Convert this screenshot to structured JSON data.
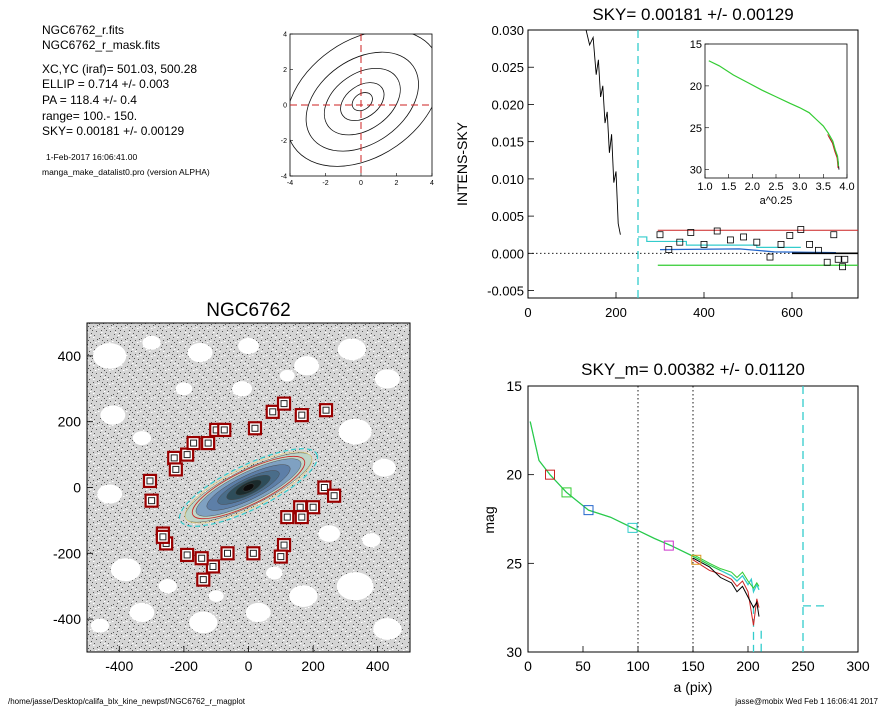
{
  "info": {
    "file1": "NGC6762_r.fits",
    "file2": "NGC6762_r_mask.fits",
    "xcyc": "XC,YC (iraf)=   501.03, 500.28",
    "ellip": "ELLIP = 0.714 +/- 0.003",
    "pa": "PA    = 118.4 +/-   0.4",
    "range": "range=  100.-  150.",
    "sky": "SKY= 0.00181 +/- 0.00129",
    "date": "1-Feb-2017 16:06:41.00",
    "program": "manga_make_datalist0.pro (version ALPHA)"
  },
  "footer": {
    "path": "/home/jasse/Desktop/califa_blx_kine_newpsf/NGC6762_r_magplot",
    "stamp": "jasse@mobix  Wed Feb  1 16:06:41 2017"
  },
  "colors": {
    "cyan": "#33cccc",
    "red": "#cc2222",
    "green": "#33cc33",
    "blue": "#2266cc",
    "dark_red": "#990000"
  },
  "chart_data": [
    {
      "id": "contour",
      "type": "line",
      "xlim": [
        -4,
        4
      ],
      "ylim": [
        -4,
        4
      ],
      "xticks": [
        "-4",
        "-2",
        "0",
        "2",
        "4"
      ],
      "yticks": [
        "-4",
        "-2",
        "0",
        "2",
        "4"
      ],
      "crosshair": [
        0,
        0
      ]
    },
    {
      "id": "sky",
      "type": "line",
      "title": "SKY= 0.00181 +/- 0.00129",
      "ylabel": "INTENS-SKY",
      "xlim": [
        0,
        750
      ],
      "ylim": [
        -0.006,
        0.03
      ],
      "xticks": [
        "0",
        "200",
        "400",
        "600"
      ],
      "yticks": [
        "0.030",
        "0.025",
        "0.020",
        "0.015",
        "0.010",
        "0.005",
        "0.000",
        "-0.005"
      ],
      "vline_x": 250,
      "profile": [
        [
          130,
          0.0305
        ],
        [
          140,
          0.028
        ],
        [
          148,
          0.029
        ],
        [
          155,
          0.024
        ],
        [
          160,
          0.026
        ],
        [
          165,
          0.021
        ],
        [
          170,
          0.0225
        ],
        [
          175,
          0.0175
        ],
        [
          180,
          0.019
        ],
        [
          185,
          0.0135
        ],
        [
          190,
          0.016
        ],
        [
          195,
          0.0095
        ],
        [
          200,
          0.011
        ],
        [
          205,
          0.004
        ],
        [
          210,
          0.0025
        ]
      ],
      "sky_points": [
        [
          300,
          0.0025
        ],
        [
          320,
          0.0005
        ],
        [
          345,
          0.0015
        ],
        [
          370,
          0.0028
        ],
        [
          400,
          0.0012
        ],
        [
          430,
          0.003
        ],
        [
          460,
          0.0018
        ],
        [
          490,
          0.0022
        ],
        [
          520,
          0.0015
        ],
        [
          550,
          -0.0005
        ],
        [
          575,
          0.0012
        ],
        [
          595,
          0.0024
        ],
        [
          620,
          0.0032
        ],
        [
          640,
          0.0012
        ],
        [
          660,
          0.0004
        ],
        [
          680,
          -0.0012
        ],
        [
          695,
          0.0025
        ],
        [
          705,
          -0.0008
        ],
        [
          715,
          -0.0018
        ],
        [
          720,
          -0.0008
        ]
      ],
      "sky_level": 0.00181,
      "sky_upper": 0.0031,
      "sky_lower": -0.0016,
      "inset": {
        "xlabel": "a^0.25",
        "xlim": [
          1.0,
          4.0
        ],
        "ylim": [
          15,
          31
        ],
        "xticks": [
          "1.0",
          "1.5",
          "2.0",
          "2.5",
          "3.0",
          "3.5",
          "4.0"
        ],
        "yticks": [
          "15",
          "20",
          "25",
          "30"
        ],
        "profile": [
          [
            1.08,
            17.0
          ],
          [
            1.3,
            17.6
          ],
          [
            1.6,
            18.7
          ],
          [
            1.9,
            19.6
          ],
          [
            2.2,
            20.5
          ],
          [
            2.5,
            21.3
          ],
          [
            2.8,
            22.1
          ],
          [
            3.0,
            22.6
          ],
          [
            3.2,
            23.2
          ],
          [
            3.35,
            24.0
          ],
          [
            3.5,
            24.8
          ],
          [
            3.6,
            25.6
          ],
          [
            3.7,
            26.6
          ],
          [
            3.75,
            27.6
          ],
          [
            3.8,
            28.4
          ],
          [
            3.82,
            29.6
          ]
        ]
      }
    },
    {
      "id": "image",
      "type": "scatter",
      "title": "NGC6762",
      "xlim": [
        -500,
        500
      ],
      "ylim": [
        -500,
        500
      ],
      "xticks": [
        "-400",
        "-200",
        "0",
        "200",
        "400"
      ],
      "yticks": [
        "400",
        "200",
        "0",
        "-200",
        "-400"
      ],
      "mask_boxes": [
        [
          -300,
          -40
        ],
        [
          -305,
          20
        ],
        [
          -265,
          -140
        ],
        [
          -255,
          -170
        ],
        [
          -265,
          -150
        ],
        [
          -230,
          90
        ],
        [
          -225,
          55
        ],
        [
          -190,
          100
        ],
        [
          -170,
          135
        ],
        [
          -125,
          135
        ],
        [
          -100,
          175
        ],
        [
          -75,
          175
        ],
        [
          20,
          180
        ],
        [
          75,
          230
        ],
        [
          110,
          255
        ],
        [
          165,
          220
        ],
        [
          240,
          235
        ],
        [
          235,
          0
        ],
        [
          265,
          -25
        ],
        [
          200,
          -60
        ],
        [
          160,
          -60
        ],
        [
          165,
          -90
        ],
        [
          120,
          -90
        ],
        [
          110,
          -175
        ],
        [
          100,
          -210
        ],
        [
          15,
          -200
        ],
        [
          -65,
          -200
        ],
        [
          -110,
          -240
        ],
        [
          -140,
          -280
        ],
        [
          -145,
          -215
        ],
        [
          -190,
          -205
        ]
      ],
      "ellipse": {
        "cx": 0,
        "cy": 0,
        "a": 240,
        "b": 68,
        "pa": 118.4
      }
    },
    {
      "id": "mag",
      "type": "line",
      "title": "SKY_m=  0.00382 +/- 0.01120",
      "xlabel": "a (pix)",
      "ylabel": "mag",
      "xlim": [
        0,
        300
      ],
      "ylim": [
        15,
        30
      ],
      "xticks": [
        "0",
        "50",
        "100",
        "150",
        "200",
        "250",
        "300"
      ],
      "yticks": [
        "15",
        "20",
        "25",
        "30"
      ],
      "dotted_x": [
        100,
        150
      ],
      "dashed_x": [
        250
      ],
      "series": [
        {
          "values": [
            [
              2,
              17.0
            ],
            [
              10,
              19.2
            ],
            [
              20,
              20.0
            ],
            [
              35,
              21.0
            ],
            [
              55,
              22.0
            ],
            [
              75,
              22.4
            ],
            [
              95,
              23.0
            ],
            [
              115,
              23.6
            ],
            [
              130,
              24.0
            ],
            [
              150,
              24.6
            ],
            [
              165,
              25.1
            ],
            [
              175,
              25.4
            ],
            [
              185,
              25.7
            ],
            [
              190,
              26.0
            ],
            [
              195,
              25.7
            ],
            [
              200,
              26.2
            ],
            [
              203,
              25.9
            ],
            [
              205,
              26.6
            ],
            [
              208,
              26.2
            ],
            [
              210,
              26.5
            ]
          ]
        },
        {
          "values": [
            [
              150,
              24.8
            ],
            [
              165,
              25.4
            ],
            [
              175,
              25.6
            ],
            [
              185,
              25.9
            ],
            [
              190,
              26.3
            ],
            [
              195,
              26.0
            ],
            [
              200,
              26.6
            ],
            [
              205,
              28.5
            ],
            [
              208,
              27.0
            ],
            [
              210,
              27.5
            ]
          ]
        },
        {
          "values": [
            [
              150,
              24.7
            ],
            [
              165,
              25.2
            ],
            [
              175,
              25.8
            ],
            [
              185,
              26.1
            ],
            [
              190,
              26.6
            ],
            [
              195,
              26.3
            ],
            [
              200,
              26.9
            ],
            [
              205,
              27.5
            ],
            [
              208,
              27.2
            ],
            [
              210,
              28.0
            ]
          ]
        },
        {
          "values": [
            [
              150,
              24.5
            ],
            [
              165,
              25.0
            ],
            [
              175,
              25.3
            ],
            [
              185,
              25.5
            ],
            [
              190,
              25.8
            ],
            [
              195,
              25.5
            ],
            [
              200,
              26.0
            ],
            [
              205,
              26.4
            ],
            [
              208,
              26.1
            ],
            [
              210,
              26.3
            ]
          ]
        }
      ],
      "markers": [
        [
          20,
          20.0
        ],
        [
          35,
          21.0
        ],
        [
          55,
          22.0
        ],
        [
          95,
          23.0
        ],
        [
          128,
          24.0
        ],
        [
          153,
          24.8
        ]
      ],
      "sky_tail": [
        [
          250,
          27.4
        ],
        [
          272,
          27.4
        ]
      ]
    }
  ]
}
